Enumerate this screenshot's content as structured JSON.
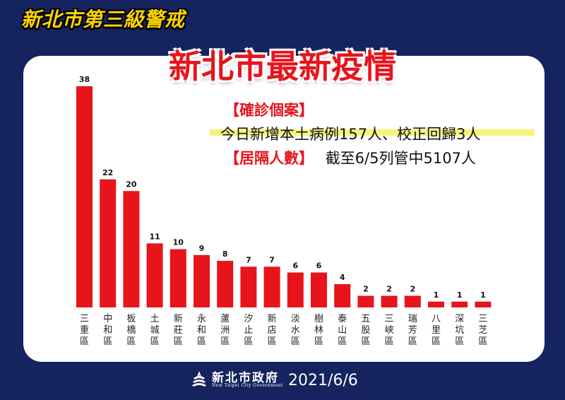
{
  "header": {
    "top_label": "新北市第三級警戒",
    "title": "新北市最新疫情"
  },
  "info": {
    "cases_tag": "【確診個案】",
    "cases_text": "今日新增本土病例157人、校正回歸3人",
    "isolation_tag": "【居隔人數】",
    "isolation_text": "截至6/5列管中5107人"
  },
  "footer": {
    "org_name": "新北市政府",
    "org_name_en": "New Taipei City Government",
    "date": "2021/6/6"
  },
  "colors": {
    "bar": "#e8141c",
    "accent": "#e8141c",
    "background": "#15235e",
    "highlight": "#f7f37a"
  },
  "chart_data": {
    "type": "bar",
    "categories": [
      "三重區",
      "中和區",
      "板橋區",
      "土城區",
      "新莊區",
      "永和區",
      "蘆洲區",
      "汐止區",
      "新店區",
      "淡水區",
      "樹林區",
      "泰山區",
      "五股區",
      "三峽區",
      "瑞芳區",
      "八里區",
      "深坑區",
      "三芝區"
    ],
    "values": [
      38,
      22,
      20,
      11,
      10,
      9,
      8,
      7,
      7,
      6,
      6,
      4,
      2,
      2,
      2,
      1,
      1,
      1
    ],
    "ylim": [
      0,
      38
    ],
    "grid": false,
    "legend": "none"
  }
}
